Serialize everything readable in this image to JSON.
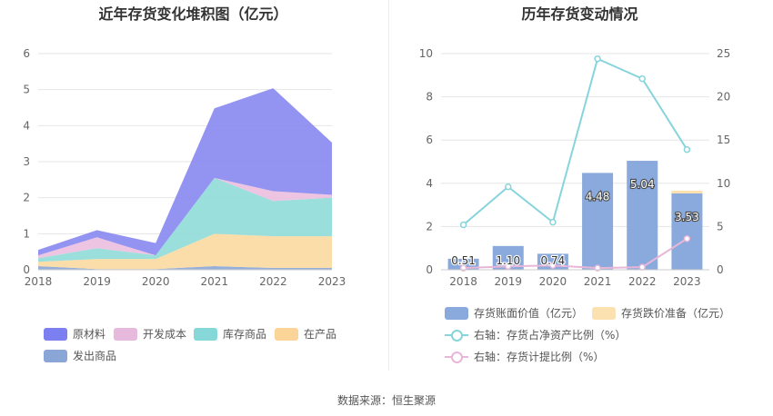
{
  "left_chart": {
    "title": "近年存货变化堆积图（亿元）",
    "chart_data": {
      "type": "area",
      "stacked": true,
      "categories": [
        "2018",
        "2019",
        "2020",
        "2021",
        "2022",
        "2023"
      ],
      "y_ticks": [
        "0",
        "1",
        "2",
        "3",
        "4",
        "5",
        "6"
      ],
      "ylim": [
        0,
        6
      ],
      "series": [
        {
          "name": "发出商品",
          "color": "#8aa6d6",
          "values": [
            0.1,
            0.02,
            0.02,
            0.1,
            0.05,
            0.05
          ]
        },
        {
          "name": "在产品",
          "color": "#fad9a0",
          "values": [
            0.12,
            0.28,
            0.28,
            0.9,
            0.88,
            0.88
          ]
        },
        {
          "name": "库存商品",
          "color": "#8fdcd8",
          "values": [
            0.1,
            0.3,
            0.1,
            1.55,
            0.98,
            1.07
          ]
        },
        {
          "name": "开发成本",
          "color": "#ebbfdf",
          "values": [
            0.08,
            0.3,
            0.0,
            0.0,
            0.27,
            0.08
          ]
        },
        {
          "name": "原材料",
          "color": "#8787f0",
          "values": [
            0.15,
            0.2,
            0.34,
            1.93,
            2.86,
            1.45
          ]
        }
      ],
      "legend_position": "bottom",
      "grid": true
    },
    "legend": [
      {
        "label": "原材料",
        "color": "#7b7ff0"
      },
      {
        "label": "开发成本",
        "color": "#e7b9dc"
      },
      {
        "label": "库存商品",
        "color": "#86d8d8"
      },
      {
        "label": "在产品",
        "color": "#fad597"
      },
      {
        "label": "发出商品",
        "color": "#8aa6d6"
      }
    ]
  },
  "right_chart": {
    "title": "历年存货变动情况",
    "chart_data": {
      "type": "bar",
      "categories": [
        "2018",
        "2019",
        "2020",
        "2021",
        "2022",
        "2023"
      ],
      "left_y_ticks": [
        "0",
        "2",
        "4",
        "6",
        "8",
        "10"
      ],
      "right_y_ticks": [
        "0",
        "5",
        "10",
        "15",
        "20",
        "25"
      ],
      "ylim_left": [
        0,
        10
      ],
      "ylim_right": [
        0,
        25
      ],
      "series": [
        {
          "name": "存货账面价值（亿元）",
          "type": "bar",
          "axis": "left",
          "color": "#8aa9dc",
          "values": [
            0.51,
            1.1,
            0.74,
            4.48,
            5.04,
            3.53
          ],
          "labels": [
            "0.51",
            "1.10",
            "0.74",
            "4.48",
            "5.04",
            "3.53"
          ]
        },
        {
          "name": "存货跌价准备（亿元）",
          "type": "bar",
          "axis": "left",
          "color": "#fbe0b0",
          "values": [
            0.0,
            0.0,
            0.0,
            0.0,
            0.0,
            0.13
          ]
        },
        {
          "name": "右轴：存货占净资产比例（%）",
          "type": "line",
          "axis": "right",
          "color": "#86d4dc",
          "values": [
            5.2,
            9.6,
            5.5,
            24.4,
            22.1,
            13.9
          ]
        },
        {
          "name": "右轴：存货计提比例（%）",
          "type": "line",
          "axis": "right",
          "color": "#e8b6d8",
          "values": [
            0.2,
            0.4,
            0.5,
            0.2,
            0.3,
            3.6
          ]
        }
      ],
      "grid": true
    },
    "legend": [
      {
        "label": "存货账面价值（亿元）",
        "color": "#8aa9dc",
        "kind": "bar"
      },
      {
        "label": "存货跌价准备（亿元）",
        "color": "#fbe0b0",
        "kind": "bar"
      },
      {
        "label": "右轴：存货占净资产比例（%）",
        "color": "#86d4dc",
        "kind": "line"
      },
      {
        "label": "右轴：存货计提比例（%）",
        "color": "#e8b6d8",
        "kind": "line"
      }
    ]
  },
  "footer": {
    "source": "数据来源：恒生聚源"
  }
}
